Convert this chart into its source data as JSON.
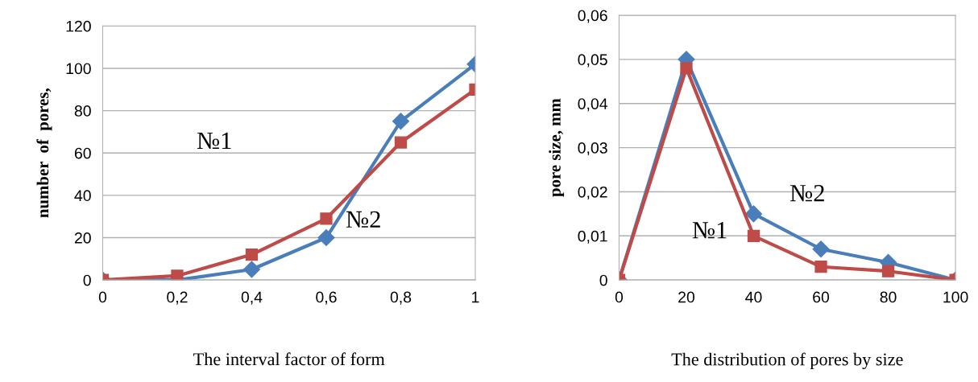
{
  "chart_data": [
    {
      "type": "line",
      "xlabel": "The interval factor of form",
      "ylabel": "number  of  pores,",
      "x": [
        0,
        0.2,
        0.4,
        0.6,
        0.8,
        1
      ],
      "series": [
        {
          "color": "#4a7ebb",
          "marker": "diamond",
          "values": [
            0,
            0,
            5,
            20,
            75,
            102
          ]
        },
        {
          "color": "#be4b48",
          "marker": "square",
          "values": [
            0,
            2,
            12,
            29,
            65,
            90
          ]
        }
      ],
      "xlim": [
        0,
        1
      ],
      "xticks": [
        0,
        {
          "value": 0.2,
          "label": "0,2"
        },
        {
          "value": 0.4,
          "label": "0,4"
        },
        {
          "value": 0.6,
          "label": "0,6"
        },
        {
          "value": 0.8,
          "label": "0,8"
        },
        1
      ],
      "ylim": [
        0,
        120
      ],
      "yticks": [
        0,
        20,
        40,
        60,
        80,
        100,
        120
      ],
      "grid": "y",
      "legend": false,
      "annotations": [
        "№1",
        "№2"
      ]
    },
    {
      "type": "line",
      "xlabel": "The distribution of pores by size",
      "ylabel": "pore size, mm",
      "x": [
        0,
        20,
        40,
        60,
        80,
        100
      ],
      "series": [
        {
          "color": "#4a7ebb",
          "marker": "diamond",
          "values": [
            0,
            0.05,
            0.015,
            0.007,
            0.004,
            0
          ]
        },
        {
          "color": "#be4b48",
          "marker": "square",
          "values": [
            0,
            0.048,
            0.01,
            0.003,
            0.002,
            0
          ]
        }
      ],
      "xlim": [
        0,
        100
      ],
      "xticks": [
        0,
        20,
        40,
        60,
        80,
        100
      ],
      "ylim": [
        0,
        0.06
      ],
      "yticks": [
        0,
        {
          "value": 0.01,
          "label": "0,01"
        },
        {
          "value": 0.02,
          "label": "0,02"
        },
        {
          "value": 0.03,
          "label": "0,03"
        },
        {
          "value": 0.04,
          "label": "0,04"
        },
        {
          "value": 0.05,
          "label": "0,05"
        },
        {
          "value": 0.06,
          "label": "0,06"
        }
      ],
      "grid": "y",
      "legend": false,
      "annotations": [
        "№1",
        "№2"
      ]
    }
  ]
}
